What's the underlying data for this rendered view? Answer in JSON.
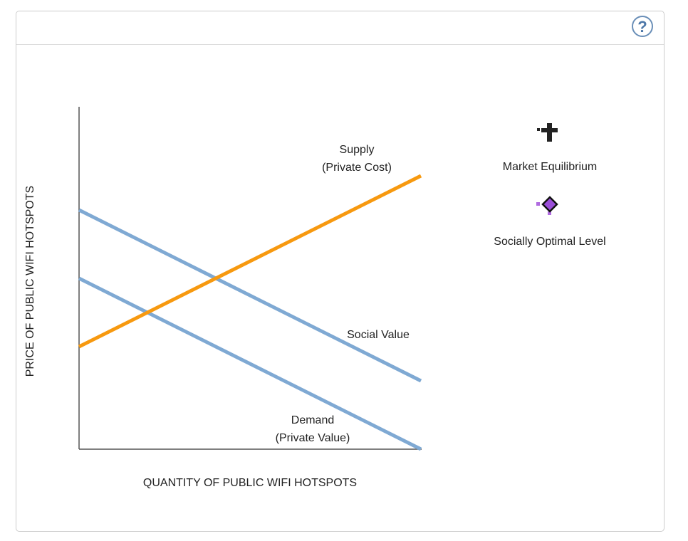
{
  "help_icon": "?",
  "chart_data": {
    "type": "line",
    "x_label": "QUANTITY OF PUBLIC WIFI HOTSPOTS",
    "y_label": "PRICE OF PUBLIC WIFI HOTSPOTS",
    "x": [
      0,
      10
    ],
    "xlim": [
      0,
      10
    ],
    "ylim": [
      0,
      10
    ],
    "series": [
      {
        "name": "Supply\n(Private Cost)",
        "color": "#f7990f",
        "values": [
          3,
          8
        ]
      },
      {
        "name": "Social Value",
        "color": "#7fa9d3",
        "values": [
          7,
          2
        ]
      },
      {
        "name": "Demand\n(Private Value)",
        "color": "#7fa9d3",
        "values": [
          5,
          0
        ]
      }
    ]
  },
  "tools": [
    "Market Equilibrium",
    "Socially Optimal Level"
  ]
}
